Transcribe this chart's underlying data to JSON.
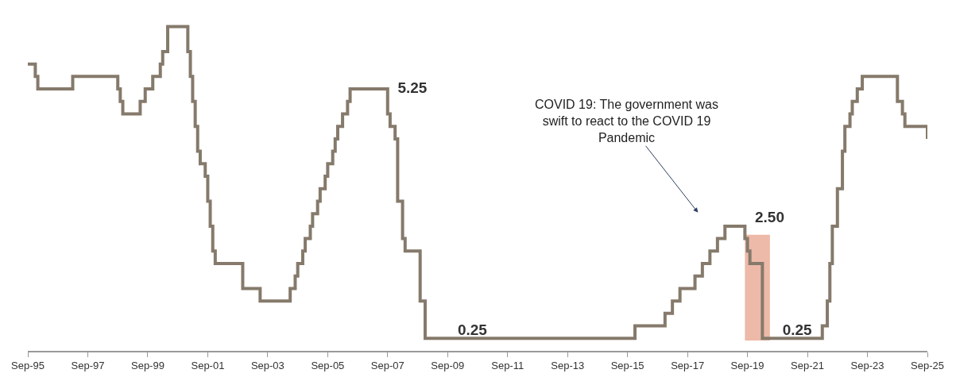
{
  "chart_data": {
    "type": "step",
    "x": [
      "1995-09",
      "1995-12",
      "1996-01",
      "1997-03",
      "1998-09",
      "1998-10",
      "1998-11",
      "1999-06",
      "1999-08",
      "1999-11",
      "2000-02",
      "2000-03",
      "2000-05",
      "2001-01",
      "2001-02",
      "2001-03",
      "2001-04",
      "2001-05",
      "2001-06",
      "2001-08",
      "2001-09",
      "2001-10",
      "2001-11",
      "2001-12",
      "2002-11",
      "2003-06",
      "2004-06",
      "2004-08",
      "2004-09",
      "2004-11",
      "2004-12",
      "2005-02",
      "2005-03",
      "2005-05",
      "2005-06",
      "2005-08",
      "2005-09",
      "2005-11",
      "2005-12",
      "2006-01",
      "2006-03",
      "2006-05",
      "2006-06",
      "2007-08",
      "2007-09",
      "2007-10",
      "2007-12",
      "2008-01",
      "2008-02",
      "2008-03",
      "2008-04",
      "2008-10",
      "2008-11",
      "2008-12",
      "2009-08",
      "2015-12",
      "2016-12",
      "2017-03",
      "2017-06",
      "2017-12",
      "2018-03",
      "2018-06",
      "2018-09",
      "2018-12",
      "2019-07",
      "2019-08",
      "2019-09",
      "2019-10",
      "2020-03",
      "2020-06",
      "2022-03",
      "2022-05",
      "2022-06",
      "2022-07",
      "2022-09",
      "2022-11",
      "2022-12",
      "2023-02",
      "2023-03",
      "2023-05",
      "2023-07",
      "2024-09",
      "2024-11",
      "2024-12",
      "2025-09"
    ],
    "series": [
      {
        "color": "#857a6b",
        "values": [
          5.75,
          5.5,
          5.25,
          5.5,
          5.25,
          5.0,
          4.75,
          5.0,
          5.25,
          5.5,
          5.75,
          6.0,
          6.5,
          6.0,
          5.5,
          5.0,
          4.5,
          4.0,
          3.75,
          3.5,
          3.0,
          2.5,
          2.0,
          1.75,
          1.25,
          1.0,
          1.25,
          1.5,
          1.75,
          2.0,
          2.25,
          2.5,
          2.75,
          3.0,
          3.25,
          3.5,
          3.75,
          4.0,
          4.25,
          4.5,
          4.75,
          5.0,
          5.25,
          5.25,
          4.75,
          4.5,
          4.25,
          3.0,
          3.0,
          2.25,
          2.0,
          1.0,
          1.0,
          0.25,
          0.25,
          0.5,
          0.75,
          1.0,
          1.25,
          1.5,
          1.75,
          2.0,
          2.25,
          2.5,
          2.5,
          2.25,
          2.0,
          1.75,
          0.25,
          0.25,
          0.5,
          1.0,
          1.75,
          2.5,
          3.25,
          4.0,
          4.5,
          4.75,
          5.0,
          5.25,
          5.5,
          5.0,
          4.75,
          4.5,
          4.25
        ],
        "value_labels": [
          null,
          null,
          null,
          null,
          null,
          null,
          null,
          null,
          null,
          null,
          null,
          null,
          null,
          null,
          null,
          null,
          null,
          null,
          null,
          null,
          null,
          null,
          null,
          null,
          null,
          null,
          null,
          null,
          null,
          null,
          null,
          null,
          null,
          null,
          null,
          null,
          null,
          null,
          null,
          null,
          null,
          null,
          null,
          "5.25",
          null,
          null,
          null,
          null,
          null,
          null,
          null,
          null,
          null,
          null,
          "0.25",
          null,
          null,
          null,
          null,
          null,
          null,
          null,
          null,
          null,
          "2.50",
          null,
          null,
          null,
          null,
          "0.25",
          null,
          null,
          null,
          null,
          null,
          null,
          null,
          null,
          null,
          null,
          null,
          null,
          null,
          null,
          null
        ]
      }
    ],
    "xlim": [
      "1995-09",
      "2025-09"
    ],
    "xticks": [
      {
        "value": "1995-09",
        "label": "Sep-95"
      },
      {
        "value": "1997-09",
        "label": "Sep-97"
      },
      {
        "value": "1999-09",
        "label": "Sep-99"
      },
      {
        "value": "2001-09",
        "label": "Sep-01"
      },
      {
        "value": "2003-09",
        "label": "Sep-03"
      },
      {
        "value": "2005-09",
        "label": "Sep-05"
      },
      {
        "value": "2007-09",
        "label": "Sep-07"
      },
      {
        "value": "2009-09",
        "label": "Sep-09"
      },
      {
        "value": "2011-09",
        "label": "Sep-11"
      },
      {
        "value": "2013-09",
        "label": "Sep-13"
      },
      {
        "value": "2015-09",
        "label": "Sep-15"
      },
      {
        "value": "2017-09",
        "label": "Sep-17"
      },
      {
        "value": "2019-09",
        "label": "Sep-19"
      },
      {
        "value": "2021-09",
        "label": "Sep-21"
      },
      {
        "value": "2023-09",
        "label": "Sep-23"
      },
      {
        "value": "2025-09",
        "label": "Sep-25"
      }
    ],
    "tick_labels": "x",
    "annotations": [
      "COVID 19: The government was\nswift to react to the COVID 19\nPandemic"
    ],
    "bands": [
      {
        "axis": "x",
        "from": "2019-08",
        "to": "2020-06",
        "color": "#e8a892"
      }
    ]
  }
}
